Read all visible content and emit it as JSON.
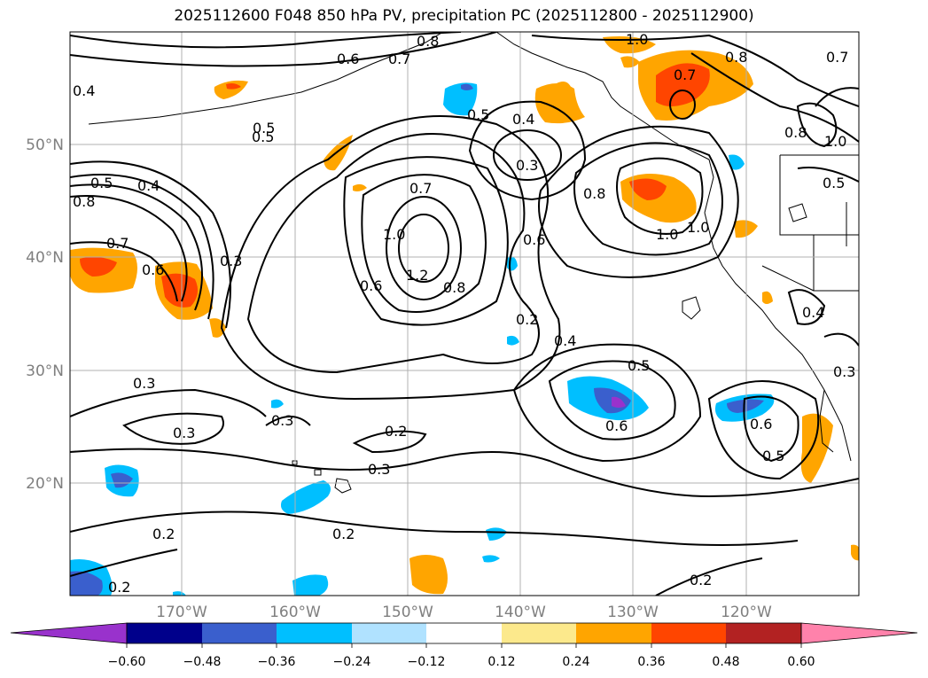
{
  "title": "2025112600 F048 850 hPa PV, precipitation PC (2025112800 - 2025112900)",
  "map": {
    "latitude_labels": [
      "50°N",
      "40°N",
      "30°N",
      "20°N"
    ],
    "longitude_labels": [
      "170°W",
      "160°W",
      "150°W",
      "140°W",
      "130°W",
      "120°W"
    ],
    "extent": {
      "lon_min": -180,
      "lon_max": -110,
      "lat_min": 10,
      "lat_max": 60
    },
    "gridlines": true
  },
  "colorbar": {
    "ticks": [
      "−0.60",
      "−0.48",
      "−0.36",
      "−0.24",
      "−0.12",
      "0.12",
      "0.24",
      "0.36",
      "0.48",
      "0.60"
    ],
    "bins": [
      {
        "range": "< -0.60",
        "color": "#9932cc"
      },
      {
        "range": "-0.60 to -0.48",
        "color": "#00008b"
      },
      {
        "range": "-0.48 to -0.36",
        "color": "#3a5fcd"
      },
      {
        "range": "-0.36 to -0.24",
        "color": "#00bfff"
      },
      {
        "range": "-0.24 to -0.12",
        "color": "#b0e2ff"
      },
      {
        "range": "-0.12 to 0.12",
        "color": "#ffffff"
      },
      {
        "range": "0.12 to 0.24",
        "color": "#fce98c"
      },
      {
        "range": "0.24 to 0.36",
        "color": "#ffa500"
      },
      {
        "range": "0.36 to 0.48",
        "color": "#ff4500"
      },
      {
        "range": "0.48 to 0.60",
        "color": "#b22222"
      },
      {
        "range": "> 0.60",
        "color": "#ff82ab"
      }
    ]
  },
  "contour_labels": [
    "0.8",
    "0.7",
    "0.6",
    "0.4",
    "0.5",
    "0.5",
    "0.4",
    "0.8",
    "0.7",
    "0.6",
    "0.3",
    "0.7",
    "1.0",
    "1.2",
    "0.6",
    "0.8",
    "0.5",
    "0.4",
    "0.3",
    "0.6",
    "0.2",
    "0.4",
    "0.8",
    "1.0",
    "1.0",
    "0.8",
    "1.0",
    "0.7",
    "0.8",
    "0.5",
    "0.5",
    "0.6",
    "0.3",
    "0.3",
    "0.3",
    "0.2",
    "0.3",
    "0.2",
    "0.2",
    "0.2",
    "0.6",
    "0.5",
    "0.4",
    "0.3",
    "1.0",
    "0.7",
    "0.2",
    "0.5"
  ]
}
